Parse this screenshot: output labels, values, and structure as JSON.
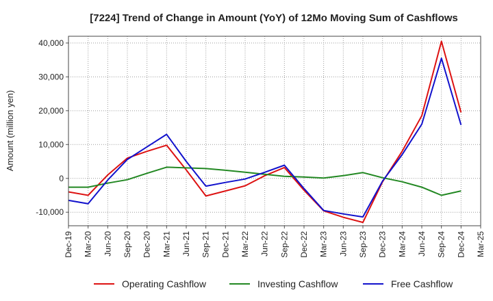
{
  "chart_data": {
    "type": "line",
    "title": "[7224]  Trend of Change in Amount (YoY) of 12Mo Moving Sum of Cashflows",
    "xlabel": "",
    "ylabel": "Amount (million yen)",
    "ylim": [
      -14000,
      42000
    ],
    "yticks": [
      -10000,
      0,
      10000,
      20000,
      30000,
      40000
    ],
    "ytick_labels": [
      "-10,000",
      "0",
      "10,000",
      "20,000",
      "30,000",
      "40,000"
    ],
    "grid": true,
    "legend_position": "bottom",
    "categories": [
      "Dec-19",
      "Mar-20",
      "Jun-20",
      "Sep-20",
      "Dec-20",
      "Mar-21",
      "Jun-21",
      "Sep-21",
      "Dec-21",
      "Mar-22",
      "Jun-22",
      "Sep-22",
      "Dec-22",
      "Mar-23",
      "Jun-23",
      "Sep-23",
      "Dec-23",
      "Mar-24",
      "Jun-24",
      "Sep-24",
      "Dec-24",
      "Mar-25"
    ],
    "series": [
      {
        "name": "Operating Cashflow",
        "color": "#dd1111",
        "values": [
          -4000,
          -5000,
          1000,
          6000,
          8000,
          9800,
          2500,
          -5200,
          -3700,
          -2200,
          800,
          3200,
          -3500,
          -9600,
          -11500,
          -13000,
          -1000,
          8000,
          18500,
          40500,
          19500,
          null
        ]
      },
      {
        "name": "Investing Cashflow",
        "color": "#228822",
        "values": [
          -2600,
          -2600,
          -1400,
          -400,
          1500,
          3300,
          3100,
          2900,
          2400,
          1800,
          1200,
          600,
          400,
          100,
          800,
          1700,
          200,
          -1000,
          -2600,
          -5000,
          -3700,
          null
        ]
      },
      {
        "name": "Free Cashflow",
        "color": "#1111cc",
        "values": [
          -6500,
          -7500,
          -500,
          5600,
          9300,
          13000,
          5000,
          -2300,
          -1200,
          -200,
          1800,
          3900,
          -3000,
          -9500,
          -10500,
          -11400,
          -800,
          7000,
          16000,
          35500,
          15800,
          null
        ]
      }
    ]
  }
}
